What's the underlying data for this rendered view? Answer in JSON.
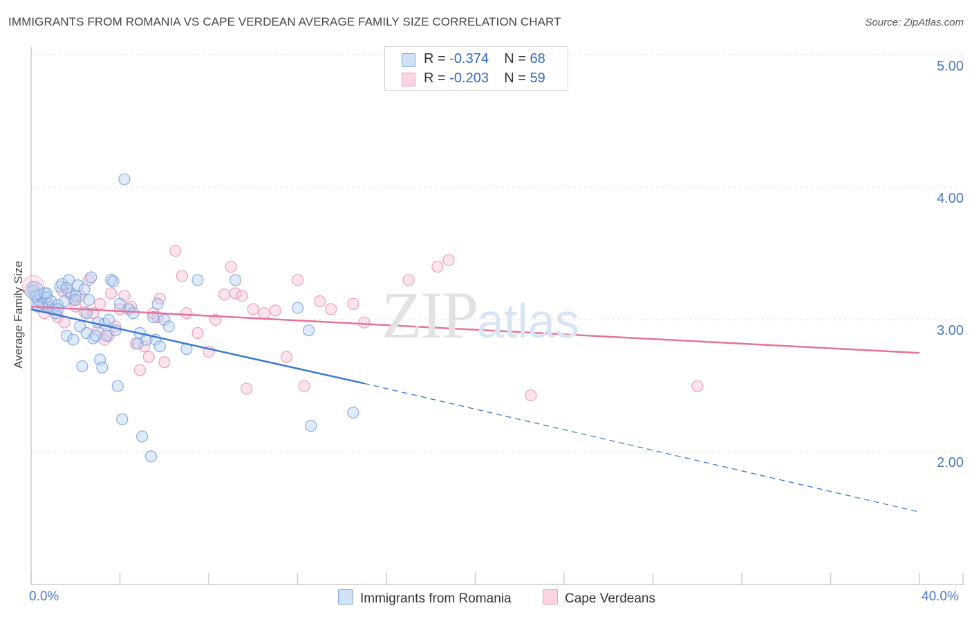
{
  "title": "IMMIGRANTS FROM ROMANIA VS CAPE VERDEAN AVERAGE FAMILY SIZE CORRELATION CHART",
  "source": "Source: ZipAtlas.com",
  "watermark": {
    "zip": "ZIP",
    "atlas": "atlas"
  },
  "stats": [
    {
      "r_label": "R =",
      "r_value": "-0.374",
      "n_label": "N =",
      "n_value": "68",
      "color": "#a9c7f0"
    },
    {
      "r_label": "R =",
      "r_value": "-0.203",
      "n_label": "N =",
      "n_value": "59",
      "color": "#f5b8cc"
    }
  ],
  "legend": [
    {
      "label": "Immigrants from Romania",
      "color": "#a9c7f0"
    },
    {
      "label": "Cape Verdeans",
      "color": "#f5b8cc"
    }
  ],
  "colors": {
    "blue": "#3a78d4",
    "pink": "#e6719b",
    "grid": "#dddddd",
    "axis_text": "#4a78c8"
  },
  "chart_data": {
    "type": "scatter",
    "title": "IMMIGRANTS FROM ROMANIA VS CAPE VERDEAN AVERAGE FAMILY SIZE CORRELATION CHART",
    "xlabel": "",
    "ylabel": "Average Family Size",
    "xlim": [
      0,
      40
    ],
    "ylim": [
      1.0,
      5.1
    ],
    "x_tick_labels": [
      "0.0%",
      "40.0%"
    ],
    "y_ticks": [
      2.0,
      3.0,
      4.0,
      5.0
    ],
    "y_tick_labels": [
      "2.00",
      "3.00",
      "4.00",
      "5.00"
    ],
    "series": [
      {
        "name": "Immigrants from Romania",
        "color": "#a9c7f0",
        "trend": {
          "x0": 0.0,
          "y0": 3.08,
          "x1": 15.0,
          "y1": 2.52,
          "dash_to_x": 40.0,
          "dash_to_y": 1.55
        },
        "points": [
          [
            0.1,
            3.22
          ],
          [
            0.2,
            3.18
          ],
          [
            0.3,
            3.15
          ],
          [
            0.4,
            3.19
          ],
          [
            0.5,
            3.12
          ],
          [
            0.6,
            3.2
          ],
          [
            0.7,
            3.17
          ],
          [
            0.8,
            3.1
          ],
          [
            0.9,
            3.14
          ],
          [
            1.0,
            3.08
          ],
          [
            1.1,
            3.05
          ],
          [
            1.2,
            3.11
          ],
          [
            1.3,
            3.25
          ],
          [
            1.4,
            3.27
          ],
          [
            1.5,
            3.14
          ],
          [
            1.6,
            2.88
          ],
          [
            1.7,
            3.3
          ],
          [
            1.8,
            3.2
          ],
          [
            1.9,
            2.85
          ],
          [
            2.0,
            3.18
          ],
          [
            2.1,
            3.26
          ],
          [
            2.2,
            2.95
          ],
          [
            2.3,
            2.65
          ],
          [
            2.4,
            3.23
          ],
          [
            2.5,
            2.9
          ],
          [
            2.6,
            3.15
          ],
          [
            2.7,
            3.32
          ],
          [
            2.8,
            2.86
          ],
          [
            2.9,
            2.88
          ],
          [
            3.0,
            2.98
          ],
          [
            3.1,
            2.7
          ],
          [
            3.2,
            2.64
          ],
          [
            3.3,
            2.97
          ],
          [
            3.4,
            2.88
          ],
          [
            3.5,
            3.0
          ],
          [
            3.6,
            3.3
          ],
          [
            3.7,
            3.29
          ],
          [
            3.8,
            2.92
          ],
          [
            3.9,
            2.5
          ],
          [
            4.0,
            3.12
          ],
          [
            4.1,
            2.25
          ],
          [
            4.2,
            4.06
          ],
          [
            4.4,
            3.08
          ],
          [
            4.6,
            3.05
          ],
          [
            4.8,
            2.82
          ],
          [
            4.9,
            2.9
          ],
          [
            5.0,
            2.12
          ],
          [
            5.2,
            2.85
          ],
          [
            5.4,
            1.97
          ],
          [
            5.5,
            3.02
          ],
          [
            5.6,
            2.85
          ],
          [
            5.7,
            3.12
          ],
          [
            5.8,
            2.8
          ],
          [
            6.0,
            3.0
          ],
          [
            6.2,
            2.95
          ],
          [
            7.0,
            2.78
          ],
          [
            7.5,
            3.3
          ],
          [
            2.0,
            3.15
          ],
          [
            1.2,
            3.08
          ],
          [
            0.7,
            3.2
          ],
          [
            12.0,
            3.09
          ],
          [
            12.5,
            2.92
          ],
          [
            12.6,
            2.2
          ],
          [
            14.5,
            2.3
          ],
          [
            9.2,
            3.3
          ],
          [
            0.3,
            3.1
          ],
          [
            2.5,
            3.05
          ],
          [
            1.6,
            3.24
          ]
        ]
      },
      {
        "name": "Cape Verdeans",
        "color": "#f5b8cc",
        "trend": {
          "x0": 0.0,
          "y0": 3.1,
          "x1": 40.0,
          "y1": 2.75
        },
        "points": [
          [
            0.1,
            3.25
          ],
          [
            0.3,
            3.15
          ],
          [
            0.5,
            3.1
          ],
          [
            0.6,
            3.05
          ],
          [
            0.8,
            3.12
          ],
          [
            1.0,
            3.08
          ],
          [
            1.2,
            3.02
          ],
          [
            1.5,
            2.98
          ],
          [
            1.7,
            3.2
          ],
          [
            1.9,
            3.15
          ],
          [
            2.0,
            3.1
          ],
          [
            2.2,
            3.18
          ],
          [
            2.4,
            3.06
          ],
          [
            2.6,
            3.3
          ],
          [
            2.8,
            3.05
          ],
          [
            3.0,
            2.92
          ],
          [
            3.1,
            3.12
          ],
          [
            3.3,
            2.85
          ],
          [
            3.5,
            2.88
          ],
          [
            3.6,
            3.2
          ],
          [
            3.8,
            2.95
          ],
          [
            4.0,
            3.08
          ],
          [
            4.2,
            3.18
          ],
          [
            4.5,
            3.1
          ],
          [
            4.7,
            2.82
          ],
          [
            4.9,
            2.62
          ],
          [
            5.1,
            2.8
          ],
          [
            5.3,
            2.72
          ],
          [
            5.5,
            3.05
          ],
          [
            5.7,
            3.02
          ],
          [
            5.8,
            3.16
          ],
          [
            6.0,
            2.68
          ],
          [
            6.5,
            3.52
          ],
          [
            6.8,
            3.33
          ],
          [
            7.0,
            3.05
          ],
          [
            7.5,
            2.9
          ],
          [
            8.0,
            2.76
          ],
          [
            8.3,
            3.0
          ],
          [
            8.7,
            3.19
          ],
          [
            9.0,
            3.4
          ],
          [
            9.2,
            3.2
          ],
          [
            9.5,
            3.18
          ],
          [
            9.7,
            2.48
          ],
          [
            10.0,
            3.08
          ],
          [
            10.5,
            3.05
          ],
          [
            11.0,
            3.07
          ],
          [
            11.5,
            2.72
          ],
          [
            12.0,
            3.3
          ],
          [
            12.3,
            2.5
          ],
          [
            13.0,
            3.14
          ],
          [
            13.5,
            3.08
          ],
          [
            14.5,
            3.12
          ],
          [
            15.0,
            2.98
          ],
          [
            17.0,
            3.3
          ],
          [
            18.3,
            3.4
          ],
          [
            18.8,
            3.45
          ],
          [
            22.5,
            2.43
          ],
          [
            30.0,
            2.5
          ],
          [
            1.4,
            3.22
          ]
        ]
      }
    ]
  }
}
